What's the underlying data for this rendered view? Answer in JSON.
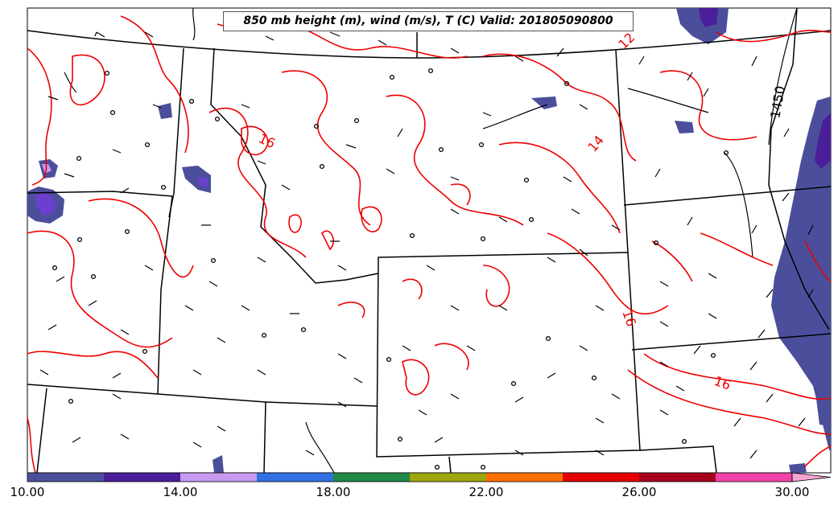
{
  "title": "850 mb height (m), wind (m/s), T (C) Valid: 201805090800",
  "contour_labels": [
    {
      "text": "16",
      "color": "#ee0000"
    },
    {
      "text": "14",
      "color": "#ee0000"
    },
    {
      "text": "16",
      "color": "#ee0000"
    },
    {
      "text": "16",
      "color": "#ee0000"
    },
    {
      "text": "12",
      "color": "#ee0000"
    },
    {
      "text": "1450",
      "color": "#000000"
    }
  ],
  "colorbar": {
    "ticks": [
      "10.00",
      "14.00",
      "18.00",
      "22.00",
      "26.00",
      "30.00"
    ],
    "tick_values": [
      10,
      14,
      18,
      22,
      26,
      30
    ],
    "range": [
      10,
      31
    ],
    "bins": [
      {
        "from": 10,
        "to": 12,
        "color": "#4b4f9b"
      },
      {
        "from": 12,
        "to": 14,
        "color": "#4b1f99"
      },
      {
        "from": 14,
        "to": 16,
        "color": "#c79af0"
      },
      {
        "from": 16,
        "to": 18,
        "color": "#3370e3"
      },
      {
        "from": 18,
        "to": 20,
        "color": "#208a47"
      },
      {
        "from": 20,
        "to": 22,
        "color": "#9da60d"
      },
      {
        "from": 22,
        "to": 24,
        "color": "#ff6e00"
      },
      {
        "from": 24,
        "to": 26,
        "color": "#e40000"
      },
      {
        "from": 26,
        "to": 28,
        "color": "#a8001c"
      },
      {
        "from": 28,
        "to": 30,
        "color": "#f042a8"
      },
      {
        "from": 30,
        "to": 31,
        "color": "#f4a4d4"
      }
    ]
  },
  "colors": {
    "temperature_contour": "#ee0000",
    "height_contour": "#000000",
    "borders": "#000000",
    "wind_fill_low": "#4b4f9b",
    "wind_fill_mid": "#4b1f99",
    "wind_fill_high": "#c79af0"
  }
}
